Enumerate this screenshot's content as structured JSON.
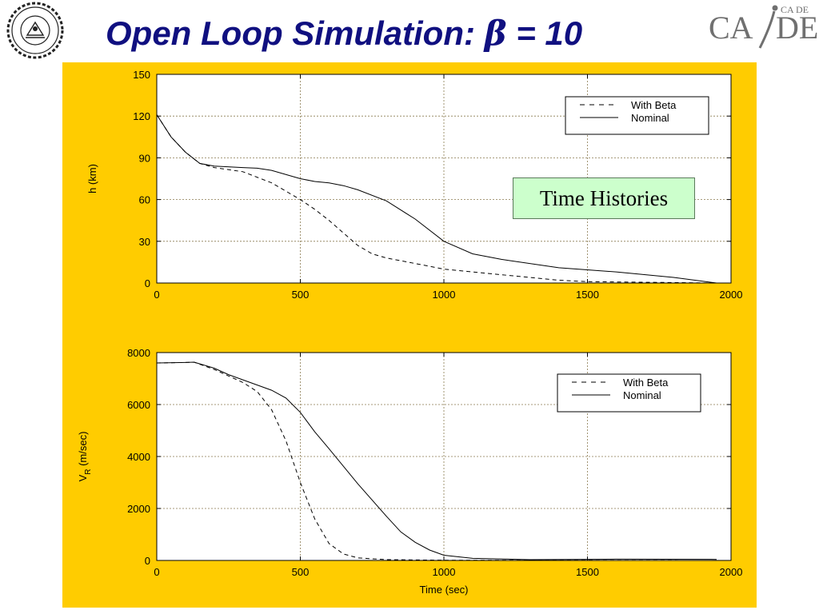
{
  "slide": {
    "title_text": "Open Loop Simulation: ",
    "title_beta": "β",
    "title_value": " = 10",
    "logo_right": {
      "letters_left": "CA",
      "letters_right": "DE",
      "small_tag": "CA DE"
    },
    "tag_label": "Time Histories"
  },
  "colors": {
    "panel": "#ffcc00",
    "title": "#101080",
    "tag_box": "#ccffcc",
    "grid": "#8a7a50"
  },
  "chart_data": [
    {
      "type": "line",
      "title": "",
      "xlabel": "",
      "ylabel": "h (km)",
      "xlim": [
        0,
        2000
      ],
      "ylim": [
        0,
        150
      ],
      "xticks": [
        0,
        500,
        1000,
        1500,
        2000
      ],
      "yticks": [
        0,
        30,
        60,
        90,
        120,
        150
      ],
      "grid": true,
      "legend": "top-right",
      "series": [
        {
          "name": "With Beta",
          "style": "dashed",
          "x": [
            0,
            50,
            100,
            150,
            200,
            300,
            400,
            500,
            550,
            600,
            650,
            700,
            750,
            800,
            900,
            1000,
            1200,
            1400,
            1500,
            1950
          ],
          "y": [
            121,
            105,
            94,
            86,
            83,
            80,
            72,
            60,
            53,
            45,
            36,
            27,
            21,
            18,
            14,
            10,
            6,
            2,
            1,
            0
          ]
        },
        {
          "name": "Nominal",
          "style": "solid",
          "x": [
            0,
            50,
            100,
            150,
            200,
            300,
            350,
            400,
            500,
            550,
            600,
            650,
            700,
            800,
            900,
            1000,
            1100,
            1200,
            1400,
            1600,
            1800,
            1950
          ],
          "y": [
            121,
            105,
            94,
            86,
            84,
            83,
            82.5,
            81,
            75,
            73,
            72,
            70,
            67,
            59,
            46,
            30,
            21,
            17,
            11,
            8,
            4,
            0
          ]
        }
      ]
    },
    {
      "type": "line",
      "title": "",
      "xlabel": "Time (sec)",
      "ylabel": "V_R (m/sec)",
      "xlim": [
        0,
        2000
      ],
      "ylim": [
        0,
        8000
      ],
      "xticks": [
        0,
        500,
        1000,
        1500,
        2000
      ],
      "yticks": [
        0,
        2000,
        4000,
        6000,
        8000
      ],
      "grid": true,
      "legend": "top-right",
      "series": [
        {
          "name": "With Beta",
          "style": "dashed",
          "x": [
            0,
            100,
            130,
            200,
            250,
            300,
            350,
            400,
            450,
            500,
            550,
            600,
            650,
            700,
            800,
            1000,
            1500,
            1950
          ],
          "y": [
            7600,
            7620,
            7630,
            7350,
            7100,
            6850,
            6500,
            5800,
            4600,
            3000,
            1600,
            650,
            250,
            100,
            30,
            10,
            5,
            0
          ]
        },
        {
          "name": "Nominal",
          "style": "solid",
          "x": [
            0,
            100,
            130,
            200,
            250,
            300,
            400,
            450,
            500,
            550,
            600,
            700,
            800,
            850,
            900,
            950,
            1000,
            1100,
            1300,
            1600,
            1950
          ],
          "y": [
            7600,
            7620,
            7630,
            7400,
            7150,
            6950,
            6550,
            6250,
            5700,
            4950,
            4300,
            2950,
            1700,
            1100,
            700,
            400,
            200,
            80,
            30,
            50,
            40
          ]
        }
      ]
    }
  ]
}
